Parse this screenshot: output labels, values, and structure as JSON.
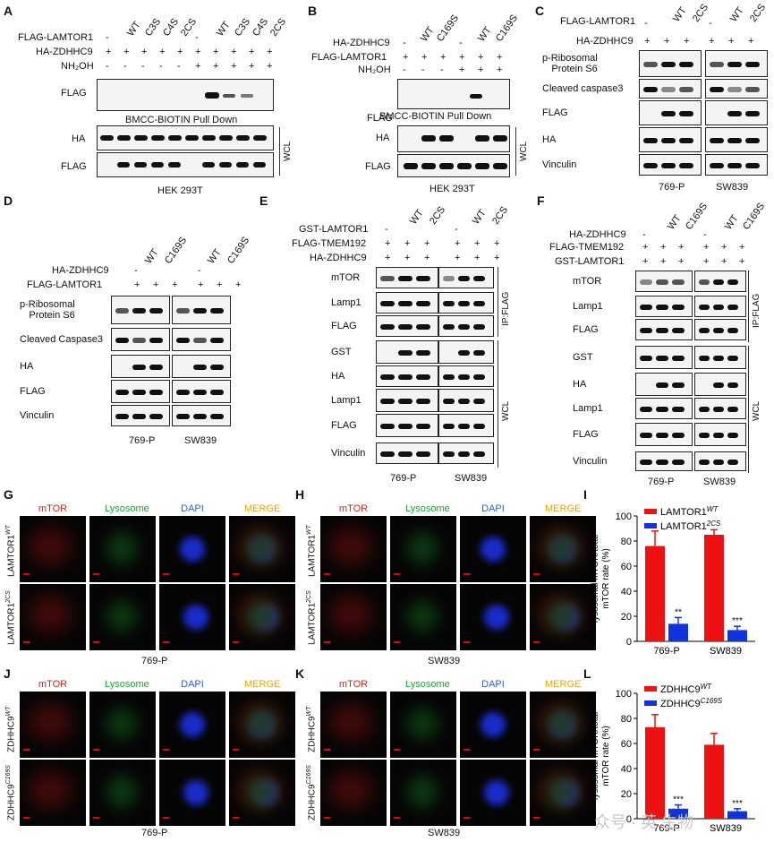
{
  "panels": {
    "A": "A",
    "B": "B",
    "C": "C",
    "D": "D",
    "E": "E",
    "F": "F",
    "G": "G",
    "H": "H",
    "I": "I",
    "J": "J",
    "K": "K",
    "L": "L"
  },
  "A": {
    "rows": [
      "FLAG-LAMTOR1",
      "HA-ZDHHC9",
      "NH₂OH"
    ],
    "row_signs": [
      [
        "-",
        "",
        "",
        "",
        "",
        "-",
        "",
        "",
        "",
        ""
      ],
      [
        "+",
        "+",
        "+",
        "+",
        "+",
        "+",
        "+",
        "+",
        "+",
        "+"
      ],
      [
        "-",
        "-",
        "-",
        "-",
        "-",
        "+",
        "+",
        "+",
        "+",
        "+"
      ]
    ],
    "col_heads": [
      "WT",
      "C3S",
      "C4S",
      "2CS",
      "WT",
      "C3S",
      "C4S",
      "2CS"
    ],
    "blot_labels": [
      "FLAG",
      "HA",
      "FLAG"
    ],
    "pulldown": "BMCC-BIOTIN  Pull Down",
    "wcl": "WCL",
    "cell": "HEK 293T"
  },
  "B": {
    "rows": [
      "HA-ZDHHC9",
      "FLAG-LAMTOR1",
      "NH₂OH"
    ],
    "row_signs": [
      [
        "-",
        "",
        "",
        "-",
        "",
        ""
      ],
      [
        "+",
        "+",
        "+",
        "+",
        "+",
        "+"
      ],
      [
        "-",
        "-",
        "-",
        "+",
        "+",
        "+"
      ]
    ],
    "col_heads": [
      "WT",
      "C169S",
      "WT",
      "C169S"
    ],
    "blot_labels": [
      "FLAG",
      "HA",
      "FLAG"
    ],
    "pulldown": "BMCC-BIOTIN  Pull Down",
    "wcl": "WCL",
    "cell": "HEK 293T"
  },
  "C": {
    "rows": [
      "FLAG-LAMTOR1",
      "HA-ZDHHC9"
    ],
    "row_signs": [
      [
        "-",
        "",
        "",
        "-",
        "",
        ""
      ],
      [
        "+",
        "+",
        "+",
        "+",
        "+",
        "+"
      ]
    ],
    "col_heads": [
      "WT",
      "2CS",
      "WT",
      "2CS"
    ],
    "blot_labels": [
      "p-Ribosomal\nProtein S6",
      "Cleaved caspase3",
      "FLAG",
      "HA",
      "Vinculin"
    ],
    "cells": [
      "769-P",
      "SW839"
    ]
  },
  "D": {
    "rows": [
      "HA-ZDHHC9",
      "FLAG-LAMTOR1"
    ],
    "row_signs": [
      [
        "-",
        "",
        "",
        "-",
        "",
        ""
      ],
      [
        "+",
        "+",
        "+",
        "+",
        "+",
        "+"
      ]
    ],
    "col_heads": [
      "WT",
      "C169S",
      "WT",
      "C169S"
    ],
    "blot_labels": [
      "p-Ribosomal\nProtein S6",
      "Cleaved Caspase3",
      "HA",
      "FLAG",
      "Vinculin"
    ],
    "cells": [
      "769-P",
      "SW839"
    ]
  },
  "E": {
    "rows": [
      "GST-LAMTOR1",
      "FLAG-TMEM192",
      "HA-ZDHHC9"
    ],
    "row_signs": [
      [
        "-",
        "",
        "",
        "-",
        "",
        ""
      ],
      [
        "+",
        "+",
        "+",
        "+",
        "+",
        "+"
      ],
      [
        "+",
        "+",
        "+",
        "+",
        "+",
        "+"
      ]
    ],
    "col_heads": [
      "WT",
      "2CS",
      "WT",
      "2CS"
    ],
    "blot_labels": [
      "mTOR",
      "Lamp1",
      "FLAG",
      "GST",
      "HA",
      "Lamp1",
      "FLAG",
      "Vinculin"
    ],
    "ip": "IP:FLAG",
    "wcl": "WCL",
    "cells": [
      "769-P",
      "SW839"
    ]
  },
  "F": {
    "rows": [
      "HA-ZDHHC9",
      "FLAG-TMEM192",
      "GST-LAMTOR1"
    ],
    "row_signs": [
      [
        "-",
        "",
        "",
        "-",
        "",
        ""
      ],
      [
        "+",
        "+",
        "+",
        "+",
        "+",
        "+"
      ],
      [
        "+",
        "+",
        "+",
        "+",
        "+",
        "+"
      ]
    ],
    "col_heads": [
      "WT",
      "C169S",
      "WT",
      "C169S"
    ],
    "blot_labels": [
      "mTOR",
      "Lamp1",
      "FLAG",
      "GST",
      "HA",
      "Lamp1",
      "FLAG",
      "Vinculin"
    ],
    "ip": "IP:FLAG",
    "wcl": "WCL",
    "cells": [
      "769-P",
      "SW839"
    ]
  },
  "imaging": {
    "channels": [
      "mTOR",
      "Lysosome",
      "DAPI",
      "MERGE"
    ],
    "channel_colors": [
      "#e0201a",
      "#1aa830",
      "#2f5fe0",
      "#e8a400"
    ],
    "G_rows": [
      "LAMTOR1",
      "WT",
      "LAMTOR1",
      "2CS"
    ],
    "G_cell": "769-P",
    "H_cell": "SW839",
    "J_rows": [
      "ZDHHC9",
      "WT",
      "ZDHHC9",
      "C169S"
    ],
    "J_cell": "769-P",
    "K_cell": "SW839"
  },
  "chart_data": [
    {
      "type": "bar",
      "categories": [
        "769-P",
        "SW839"
      ],
      "series": [
        {
          "name": "LAMTOR1 WT",
          "values": [
            76,
            85
          ],
          "errors": [
            12,
            4
          ],
          "color": "#ee1111"
        },
        {
          "name": "LAMTOR1 2CS",
          "values": [
            14,
            9
          ],
          "errors": [
            5,
            3
          ],
          "color": "#1133dd"
        }
      ],
      "significance": [
        "**",
        "***"
      ],
      "ylabel": "lysosomal mTOR/total mTOR rate (%)",
      "ylim": [
        0,
        100
      ],
      "yticks": [
        "0",
        "20",
        "40",
        "60",
        "80",
        "100"
      ],
      "legend": [
        "LAMTOR1",
        "WT",
        "LAMTOR1",
        "2CS"
      ]
    },
    {
      "type": "bar",
      "categories": [
        "769-P",
        "SW839"
      ],
      "series": [
        {
          "name": "ZDHHC9 WT",
          "values": [
            73,
            59
          ],
          "errors": [
            10,
            9
          ],
          "color": "#ee1111"
        },
        {
          "name": "ZDHHC9 C169S",
          "values": [
            8,
            6
          ],
          "errors": [
            3,
            2
          ],
          "color": "#1133dd"
        }
      ],
      "significance": [
        "***",
        "***"
      ],
      "ylabel": "lysosomal mTOR/total mTOR rate (%)",
      "ylim": [
        0,
        100
      ],
      "yticks": [
        "0",
        "20",
        "40",
        "60",
        "80",
        "100"
      ],
      "legend": [
        "ZDHHC9",
        "WT",
        "ZDHHC9",
        "C169S"
      ]
    }
  ],
  "watermark": "众号 · 英 生物"
}
